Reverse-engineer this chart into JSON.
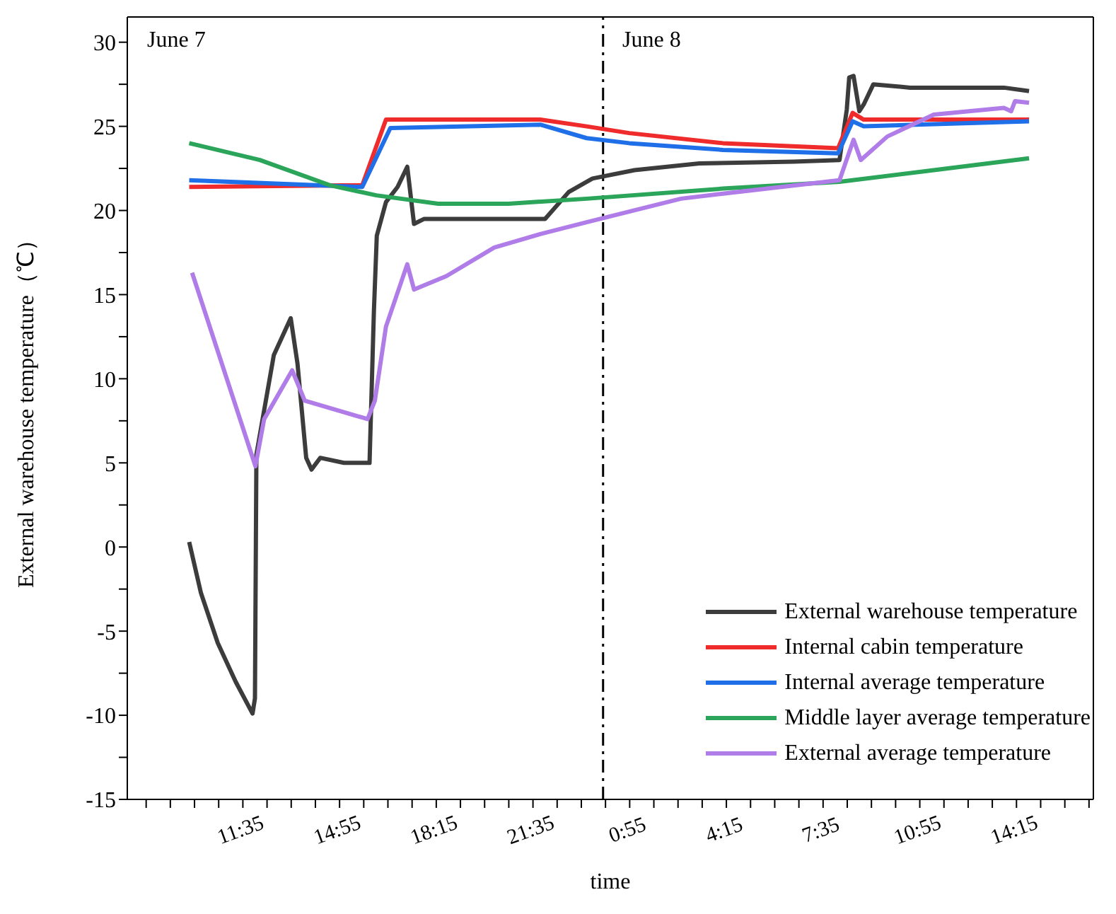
{
  "chart_data": {
    "type": "line",
    "xlabel": "time",
    "ylabel": "External warehouse temperature（℃）",
    "xlim": [
      "--06-07T07:36",
      "--06-08T16:54"
    ],
    "xticks": [
      {
        "value": "--06-07T08:15",
        "label": null
      },
      {
        "value": "--06-07T09:05",
        "label": null
      },
      {
        "value": "--06-07T09:55",
        "label": null
      },
      {
        "value": "--06-07T10:45",
        "label": null
      },
      {
        "value": "--06-07T11:35",
        "label": "11:35"
      },
      {
        "value": "--06-07T12:25",
        "label": null
      },
      {
        "value": "--06-07T13:15",
        "label": null
      },
      {
        "value": "--06-07T14:05",
        "label": null
      },
      {
        "value": "--06-07T14:55",
        "label": "14:55"
      },
      {
        "value": "--06-07T15:45",
        "label": null
      },
      {
        "value": "--06-07T16:35",
        "label": null
      },
      {
        "value": "--06-07T17:25",
        "label": null
      },
      {
        "value": "--06-07T18:15",
        "label": "18:15"
      },
      {
        "value": "--06-07T19:05",
        "label": null
      },
      {
        "value": "--06-07T19:55",
        "label": null
      },
      {
        "value": "--06-07T20:45",
        "label": null
      },
      {
        "value": "--06-07T21:35",
        "label": "21:35"
      },
      {
        "value": "--06-07T22:25",
        "label": null
      },
      {
        "value": "--06-07T23:15",
        "label": null
      },
      {
        "value": "--06-08T00:05",
        "label": null
      },
      {
        "value": "--06-08T00:55",
        "label": "0:55"
      },
      {
        "value": "--06-08T01:45",
        "label": null
      },
      {
        "value": "--06-08T02:35",
        "label": null
      },
      {
        "value": "--06-08T03:25",
        "label": null
      },
      {
        "value": "--06-08T04:15",
        "label": "4:15"
      },
      {
        "value": "--06-08T05:05",
        "label": null
      },
      {
        "value": "--06-08T05:55",
        "label": null
      },
      {
        "value": "--06-08T06:45",
        "label": null
      },
      {
        "value": "--06-08T07:35",
        "label": "7:35"
      },
      {
        "value": "--06-08T08:25",
        "label": null
      },
      {
        "value": "--06-08T09:15",
        "label": null
      },
      {
        "value": "--06-08T10:05",
        "label": null
      },
      {
        "value": "--06-08T10:55",
        "label": "10:55"
      },
      {
        "value": "--06-08T11:45",
        "label": null
      },
      {
        "value": "--06-08T12:35",
        "label": null
      },
      {
        "value": "--06-08T13:25",
        "label": null
      },
      {
        "value": "--06-08T14:15",
        "label": "14:15"
      },
      {
        "value": "--06-08T15:05",
        "label": null
      },
      {
        "value": "--06-08T15:55",
        "label": null
      },
      {
        "value": "--06-08T16:45",
        "label": null
      }
    ],
    "ylim": [
      -15,
      31.5
    ],
    "yticks": [
      -15,
      {
        "value": -12.5,
        "label": null
      },
      -10,
      {
        "value": -7.5,
        "label": null
      },
      -5,
      {
        "value": -2.5,
        "label": null
      },
      0,
      {
        "value": 2.5,
        "label": null
      },
      5,
      {
        "value": 7.5,
        "label": null
      },
      10,
      {
        "value": 12.5,
        "label": null
      },
      15,
      {
        "value": 17.5,
        "label": null
      },
      20,
      {
        "value": 22.5,
        "label": null
      },
      25,
      {
        "value": 27.5,
        "label": null
      },
      30
    ],
    "legend": "bottom right",
    "line_style": "solid",
    "ref_lines": [
      {
        "axis": "x",
        "value": "--06-08T00:00",
        "line_style": "dashed",
        "color": "#000000"
      }
    ],
    "annotations": [
      "June 7",
      "June 8"
    ],
    "series": [
      {
        "name": "External warehouse temperature",
        "color": "#3c3c3c",
        "x": [
          "--06-07T09:44",
          "--06-07T10:08",
          "--06-07T10:43",
          "--06-07T11:20",
          "--06-07T11:55",
          "--06-07T12:00",
          "--06-07T12:03",
          "--06-07T12:39",
          "--06-07T13:14",
          "--06-07T13:28",
          "--06-07T13:46",
          "--06-07T13:57",
          "--06-07T14:15",
          "--06-07T15:04",
          "--06-07T15:57",
          "--06-07T16:06",
          "--06-07T16:12",
          "--06-07T16:31",
          "--06-07T16:55",
          "--06-07T17:15",
          "--06-07T17:29",
          "--06-07T17:50",
          "--06-07T22:00",
          "--06-07T22:49",
          "--06-07T23:38",
          "--06-08T01:05",
          "--06-08T03:19",
          "--06-08T06:34",
          "--06-08T08:09",
          "--06-08T08:24",
          "--06-08T08:29",
          "--06-08T08:38",
          "--06-08T08:50",
          "--06-08T08:59",
          "--06-08T09:19",
          "--06-08T10:35",
          "--06-08T13:49",
          "--06-08T14:41"
        ],
        "values": [
          0.3,
          -2.7,
          -5.7,
          -8.0,
          -9.9,
          -9.0,
          5.5,
          11.4,
          13.6,
          10.9,
          5.3,
          4.6,
          5.3,
          5.0,
          5.0,
          14,
          18.5,
          20.5,
          21.4,
          22.6,
          19.2,
          19.5,
          19.5,
          21.1,
          21.9,
          22.4,
          22.8,
          22.9,
          23.0,
          26,
          27.9,
          28.0,
          25.9,
          26.3,
          27.5,
          27.3,
          27.3,
          27.1
        ]
      },
      {
        "name": "Internal cabin temperature",
        "color": "#ef2b2b",
        "x": [
          "--06-07T09:44",
          "--06-07T15:42",
          "--06-07T16:31",
          "--06-07T21:50",
          "--06-07T23:26",
          "--06-08T00:54",
          "--06-08T04:08",
          "--06-08T08:06",
          "--06-08T08:36",
          "--06-08T08:59",
          "--06-08T14:41"
        ],
        "values": [
          21.4,
          21.5,
          25.4,
          25.4,
          25.0,
          24.6,
          24.0,
          23.7,
          25.8,
          25.4,
          25.4
        ]
      },
      {
        "name": "Internal average temperature",
        "color": "#1f6fe8",
        "x": [
          "--06-07T09:44",
          "--06-07T15:42",
          "--06-07T16:40",
          "--06-07T21:50",
          "--06-07T23:26",
          "--06-08T00:54",
          "--06-08T04:08",
          "--06-08T08:06",
          "--06-08T08:36",
          "--06-08T08:59",
          "--06-08T14:41"
        ],
        "values": [
          21.8,
          21.4,
          24.9,
          25.1,
          24.3,
          24.0,
          23.6,
          23.4,
          25.3,
          25.0,
          25.3
        ]
      },
      {
        "name": "Middle layer average temperature",
        "color": "#2aa55a",
        "x": [
          "--06-07T09:44",
          "--06-07T12:10",
          "--06-07T14:35",
          "--06-07T16:11",
          "--06-07T18:19",
          "--06-07T20:44",
          "--06-07T23:26",
          "--06-08T04:08",
          "--06-08T08:09",
          "--06-08T11:24",
          "--06-08T14:41"
        ],
        "values": [
          24.0,
          23.0,
          21.5,
          20.9,
          20.4,
          20.4,
          20.7,
          21.3,
          21.7,
          22.4,
          23.1
        ]
      },
      {
        "name": "External average temperature",
        "color": "#b07ce8",
        "x": [
          "--06-07T09:50",
          "--06-07T12:01",
          "--06-07T12:19",
          "--06-07T13:17",
          "--06-07T13:43",
          "--06-07T15:53",
          "--06-07T16:08",
          "--06-07T16:31",
          "--06-07T17:15",
          "--06-07T17:29",
          "--06-07T18:36",
          "--06-07T20:15",
          "--06-07T21:50",
          "--06-07T23:26",
          "--06-08T02:41",
          "--06-08T04:08",
          "--06-08T08:09",
          "--06-08T08:21",
          "--06-08T08:38",
          "--06-08T08:53",
          "--06-08T09:48",
          "--06-08T11:24",
          "--06-08T13:49",
          "--06-08T14:04",
          "--06-08T14:12",
          "--06-08T14:41"
        ],
        "values": [
          16.3,
          4.8,
          7.6,
          10.5,
          8.7,
          7.6,
          8.7,
          13.1,
          16.8,
          15.3,
          16.1,
          17.8,
          18.6,
          19.3,
          20.7,
          21.0,
          21.8,
          22.8,
          24.2,
          23.0,
          24.4,
          25.7,
          26.1,
          25.9,
          26.5,
          26.4
        ]
      }
    ]
  }
}
